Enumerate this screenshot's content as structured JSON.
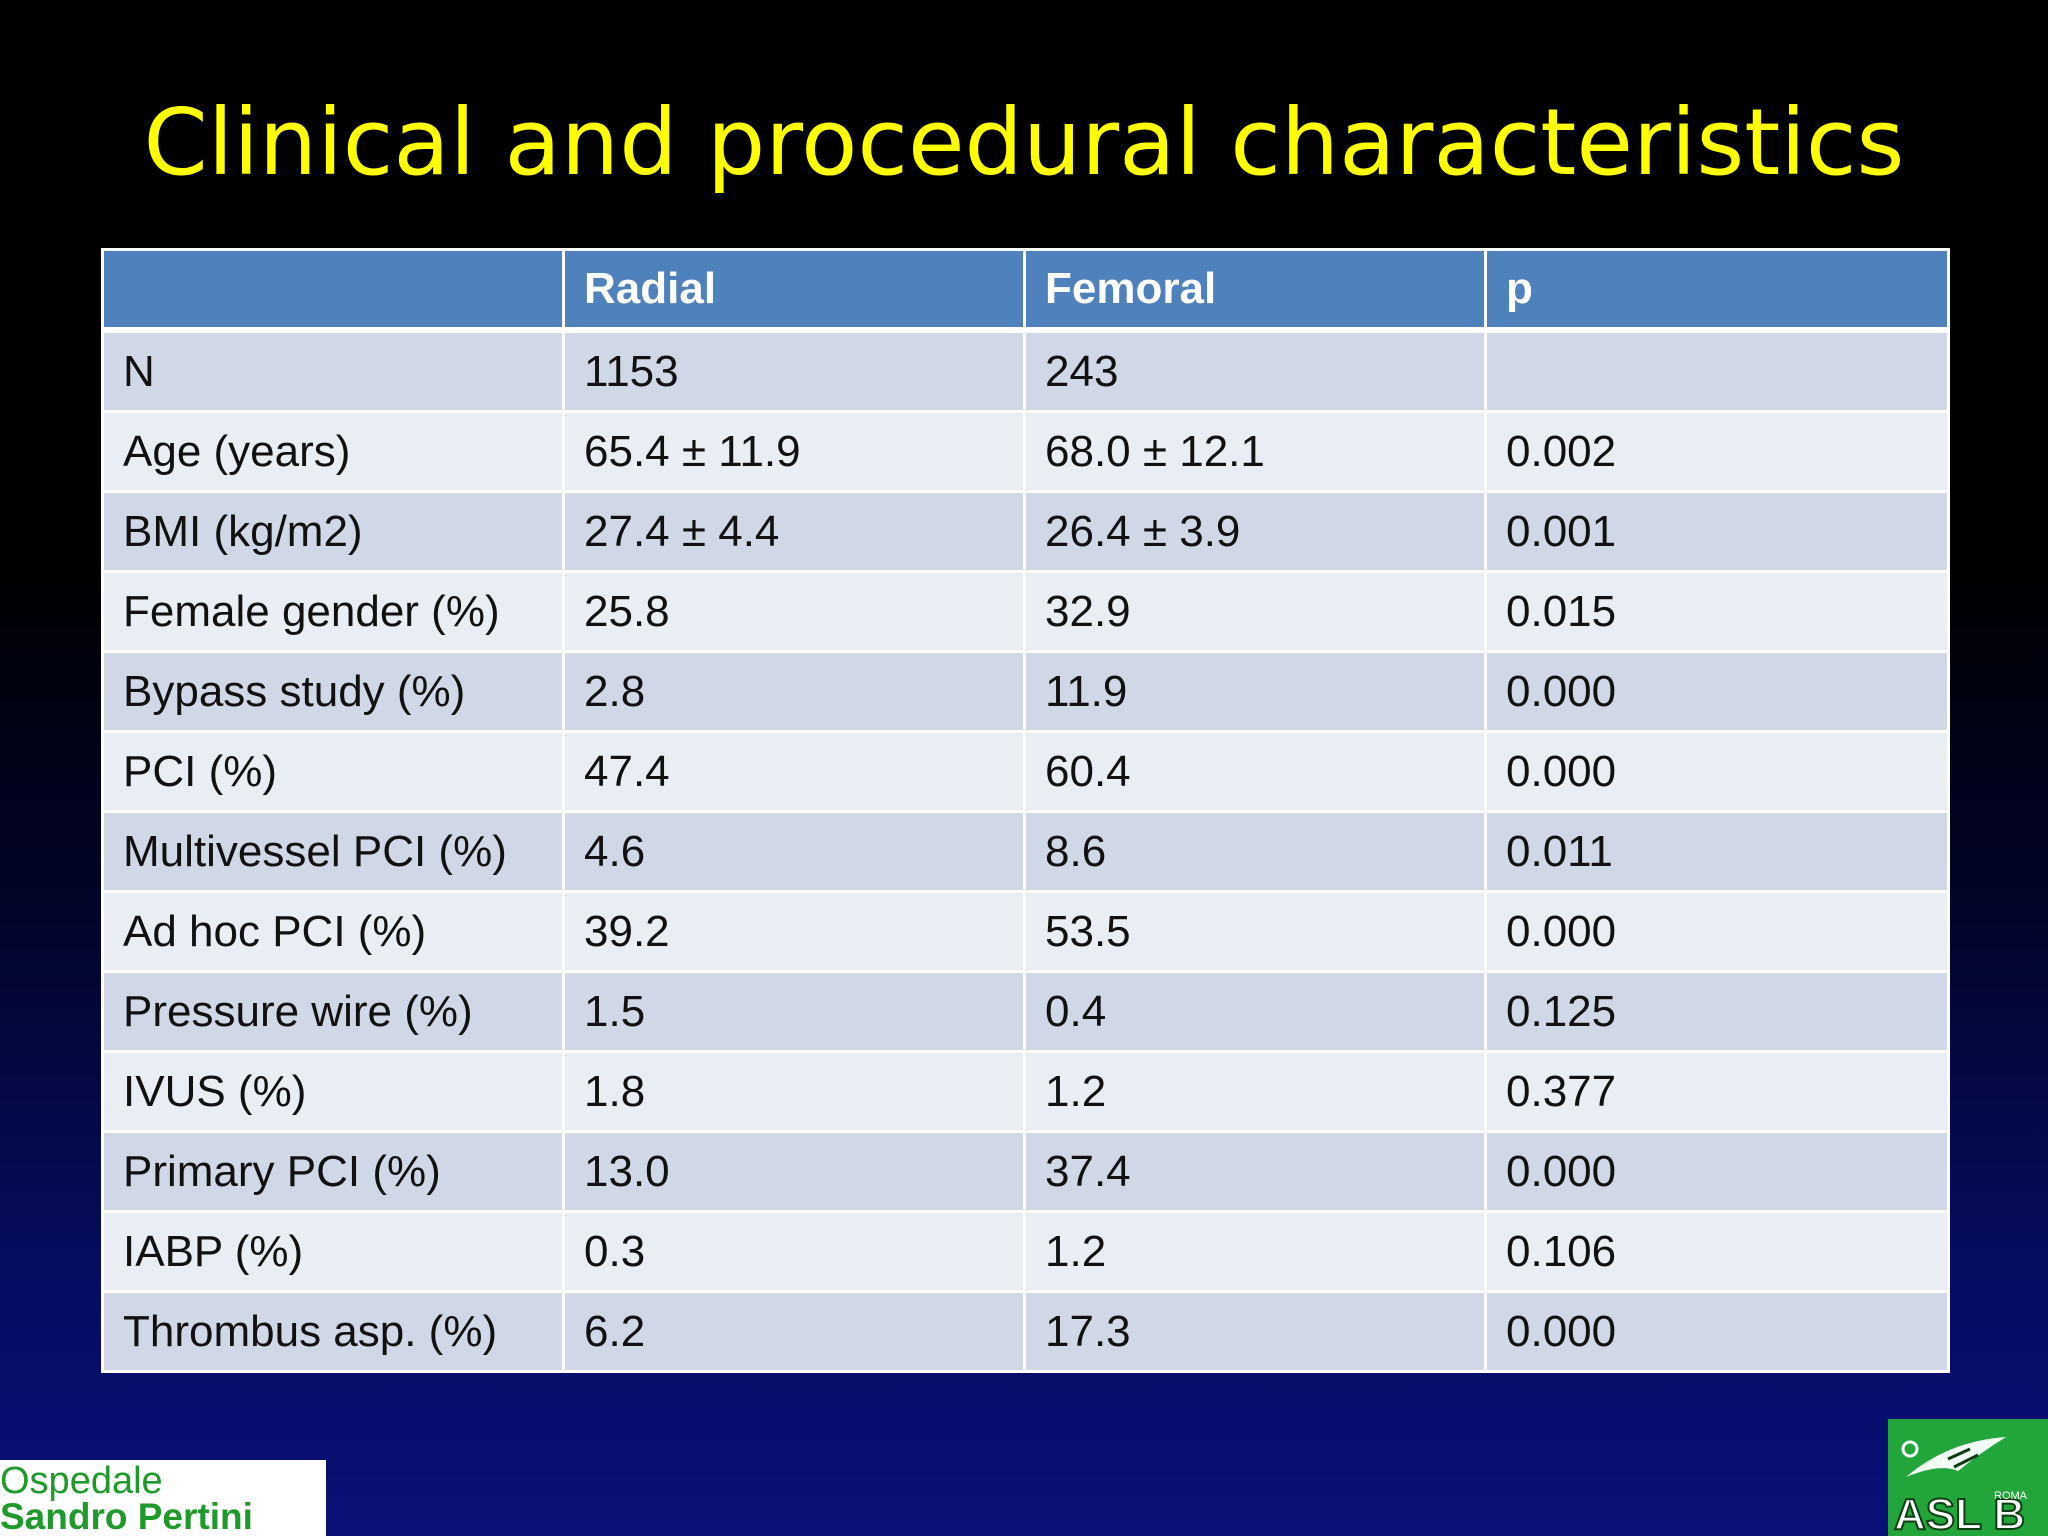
{
  "slide": {
    "title": "Clinical and procedural characteristics"
  },
  "table": {
    "headers": [
      "",
      "Radial",
      "Femoral",
      "p"
    ],
    "rows": [
      [
        "N",
        "1153",
        "243",
        ""
      ],
      [
        "Age (years)",
        "65.4 ± 11.9",
        "68.0 ± 12.1",
        "0.002"
      ],
      [
        "BMI (kg/m2)",
        "27.4 ± 4.4",
        "26.4 ± 3.9",
        "0.001"
      ],
      [
        "Female gender (%)",
        "25.8",
        "32.9",
        "0.015"
      ],
      [
        "Bypass study (%)",
        "2.8",
        "11.9",
        "0.000"
      ],
      [
        "PCI (%)",
        "47.4",
        "60.4",
        "0.000"
      ],
      [
        "Multivessel PCI (%)",
        "4.6",
        "8.6",
        "0.011"
      ],
      [
        "Ad hoc PCI (%)",
        "39.2",
        "53.5",
        "0.000"
      ],
      [
        "Pressure wire (%)",
        "1.5",
        "0.4",
        "0.125"
      ],
      [
        "IVUS (%)",
        "1.8",
        "1.2",
        "0.377"
      ],
      [
        "Primary PCI (%)",
        "13.0",
        "37.4",
        "0.000"
      ],
      [
        "IABP (%)",
        "0.3",
        "1.2",
        "0.106"
      ],
      [
        "Thrombus asp. (%)",
        "6.2",
        "17.3",
        "0.000"
      ]
    ]
  },
  "footer": {
    "hospital_logo_line1": "Ospedale",
    "hospital_logo_line2": "Sandro Pertini",
    "asl_logo_text": "ASL B",
    "asl_logo_small": "ROMA"
  },
  "colors": {
    "title": "#ffff00",
    "header_bg": "#4f81bd",
    "row_odd": "#d0d8e8",
    "row_even": "#e9edf4",
    "logo_green": "#1e9a2a"
  }
}
